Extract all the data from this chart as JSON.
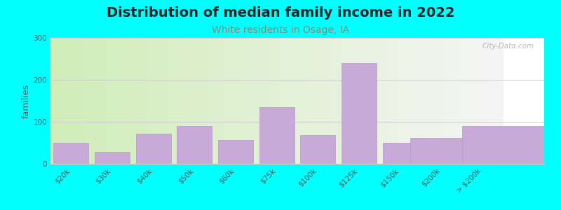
{
  "title": "Distribution of median family income in 2022",
  "subtitle": "White residents in Osage, IA",
  "ylabel": "families",
  "background_color": "#00FFFF",
  "plot_bg_gradient_left": "#d0edb8",
  "plot_bg_gradient_right": "#f5f5f5",
  "bar_color": "#c8aad8",
  "bar_edge_color": "#b898c8",
  "watermark": "City-Data.com",
  "categories": [
    "$20k",
    "$30k",
    "$40k",
    "$50k",
    "$60k",
    "$75k",
    "$100k",
    "$125k",
    "$150k",
    "$200k",
    "> $200k"
  ],
  "values": [
    50,
    28,
    72,
    90,
    57,
    135,
    68,
    240,
    50,
    62,
    90
  ],
  "ylim": [
    0,
    300
  ],
  "yticks": [
    0,
    100,
    200,
    300
  ],
  "title_fontsize": 14,
  "subtitle_fontsize": 10,
  "subtitle_color": "#888877",
  "ylabel_fontsize": 9,
  "tick_fontsize": 7.5,
  "watermark_color": "#aaaaaa",
  "grid_color": "#cccccc",
  "bar_gaps": [
    false,
    false,
    false,
    false,
    false,
    false,
    false,
    false,
    true,
    false,
    false
  ]
}
